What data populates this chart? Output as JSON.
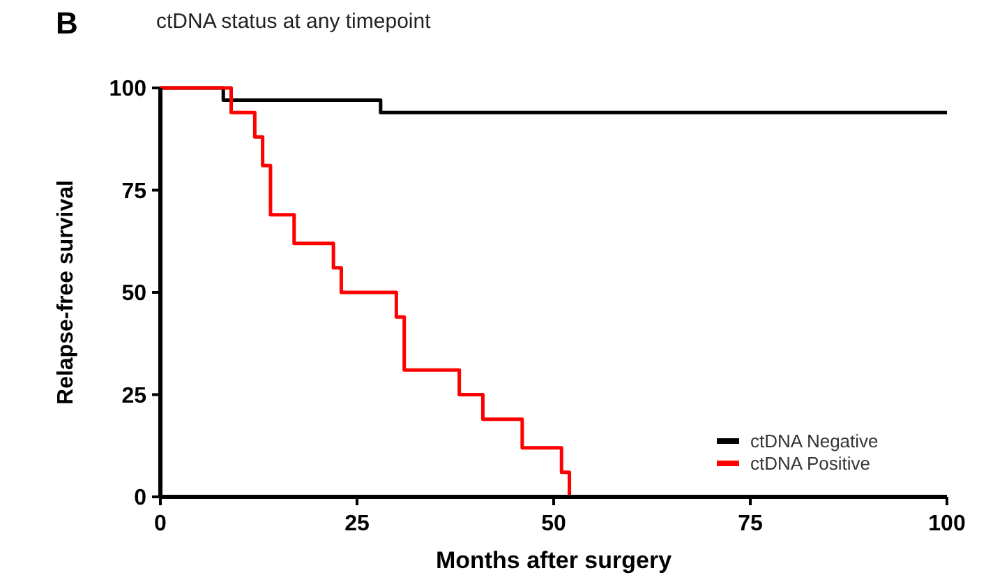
{
  "chart_data": {
    "type": "step",
    "title": "ctDNA status at any timepoint",
    "xlabel": "Months after surgery",
    "ylabel": "Relapse-free survival",
    "annotations": [
      "B"
    ],
    "series": [
      {
        "name": "ctDNA Negative",
        "color": "#000000",
        "x": [
          0,
          8,
          28,
          100
        ],
        "values": [
          100,
          97,
          94,
          94
        ]
      },
      {
        "name": "ctDNA Positive",
        "color": "#ff0000",
        "x": [
          0,
          9,
          12,
          13,
          14,
          17,
          22,
          23,
          30,
          31,
          38,
          41,
          46,
          51,
          52
        ],
        "values": [
          100,
          94,
          88,
          81,
          69,
          62,
          56,
          50,
          44,
          31,
          25,
          19,
          12,
          6,
          0
        ]
      }
    ],
    "xlim": [
      0,
      100
    ],
    "xticks": [
      0,
      25,
      50,
      75,
      100
    ],
    "ylim": [
      0,
      100
    ],
    "yticks": [
      0,
      25,
      50,
      75,
      100
    ],
    "grid": false,
    "legend": "bottom right"
  }
}
